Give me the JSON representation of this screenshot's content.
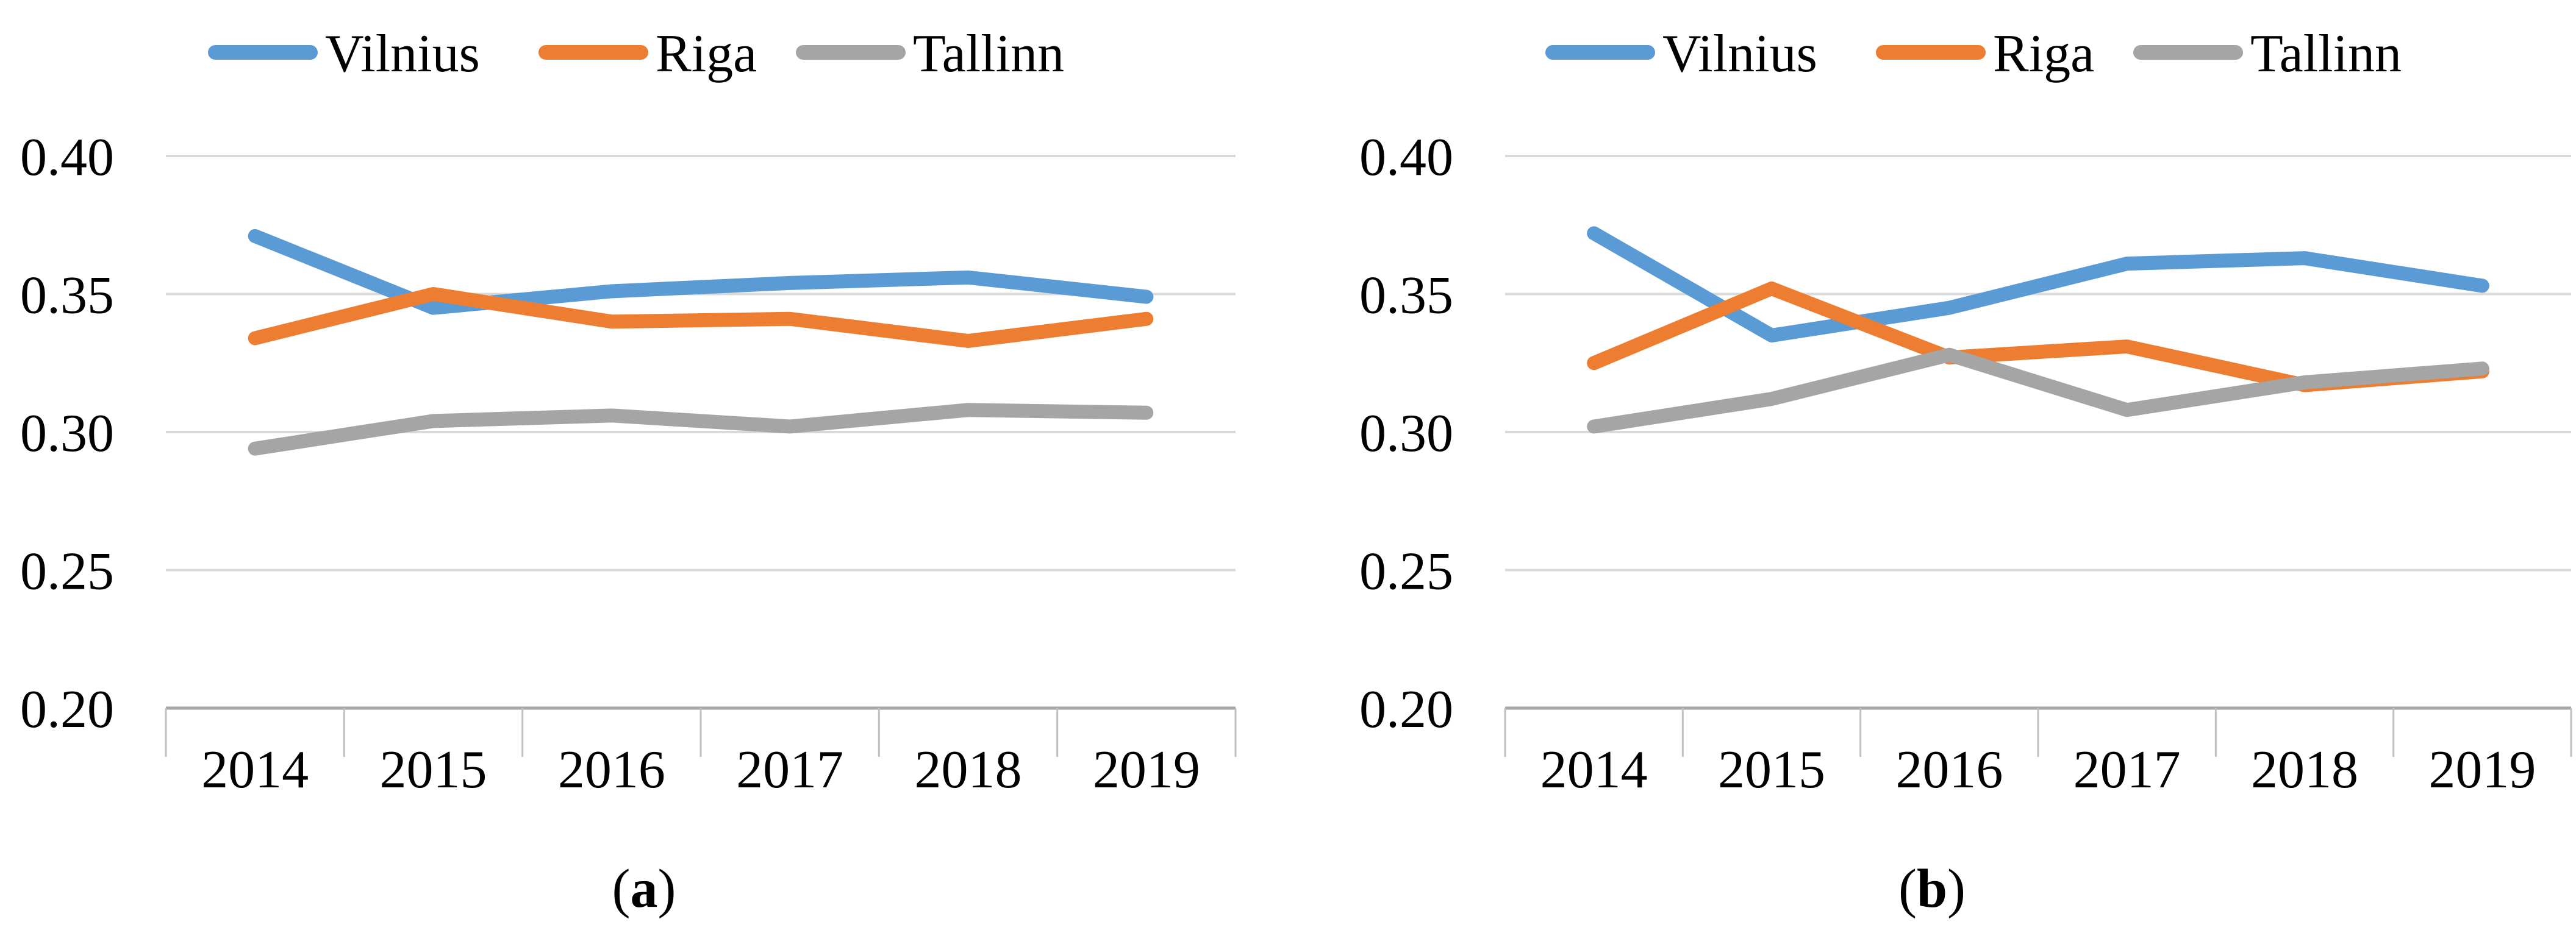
{
  "figure": {
    "background": "#ffffff",
    "grid_color": "#d9d9d9",
    "axis_color": "#a6a6a6",
    "tick_color": "#bfbfbf",
    "text_color": "#000000",
    "series_colors": {
      "Vilnius": "#5b9bd5",
      "Riga": "#ed7d31",
      "Tallinn": "#a5a5a5"
    }
  },
  "chart_data": [
    {
      "id": "a",
      "type": "line",
      "caption": {
        "prefix": "(",
        "label": "a",
        "suffix": ")"
      },
      "legend_position": "top",
      "grid": true,
      "x": [
        "2014",
        "2015",
        "2016",
        "2017",
        "2018",
        "2019"
      ],
      "ylim": [
        0.2,
        0.4
      ],
      "yticks": [
        {
          "value": 0.4,
          "label": "0.40"
        },
        {
          "value": 0.35,
          "label": "0.35"
        },
        {
          "value": 0.3,
          "label": "0.30"
        },
        {
          "value": 0.25,
          "label": "0.25"
        },
        {
          "value": 0.2,
          "label": "0.20"
        }
      ],
      "series": [
        {
          "name": "Vilnius",
          "color": "#5b9bd5",
          "values": [
            0.371,
            0.345,
            0.351,
            0.354,
            0.356,
            0.349
          ]
        },
        {
          "name": "Riga",
          "color": "#ed7d31",
          "values": [
            0.334,
            0.35,
            0.34,
            0.341,
            0.333,
            0.341
          ]
        },
        {
          "name": "Tallinn",
          "color": "#a5a5a5",
          "values": [
            0.294,
            0.304,
            0.306,
            0.302,
            0.308,
            0.307
          ]
        }
      ]
    },
    {
      "id": "b",
      "type": "line",
      "caption": {
        "prefix": "(",
        "label": "b",
        "suffix": ")"
      },
      "legend_position": "top",
      "grid": true,
      "x": [
        "2014",
        "2015",
        "2016",
        "2017",
        "2018",
        "2019"
      ],
      "ylim": [
        0.2,
        0.4
      ],
      "yticks": [
        {
          "value": 0.4,
          "label": "0.40"
        },
        {
          "value": 0.35,
          "label": "0.35"
        },
        {
          "value": 0.3,
          "label": "0.30"
        },
        {
          "value": 0.25,
          "label": "0.25"
        },
        {
          "value": 0.2,
          "label": "0.20"
        }
      ],
      "series": [
        {
          "name": "Vilnius",
          "color": "#5b9bd5",
          "values": [
            0.372,
            0.335,
            0.345,
            0.361,
            0.363,
            0.353
          ]
        },
        {
          "name": "Riga",
          "color": "#ed7d31",
          "values": [
            0.325,
            0.352,
            0.327,
            0.331,
            0.317,
            0.322
          ]
        },
        {
          "name": "Tallinn",
          "color": "#a5a5a5",
          "values": [
            0.302,
            0.312,
            0.328,
            0.308,
            0.318,
            0.323
          ]
        }
      ]
    }
  ]
}
